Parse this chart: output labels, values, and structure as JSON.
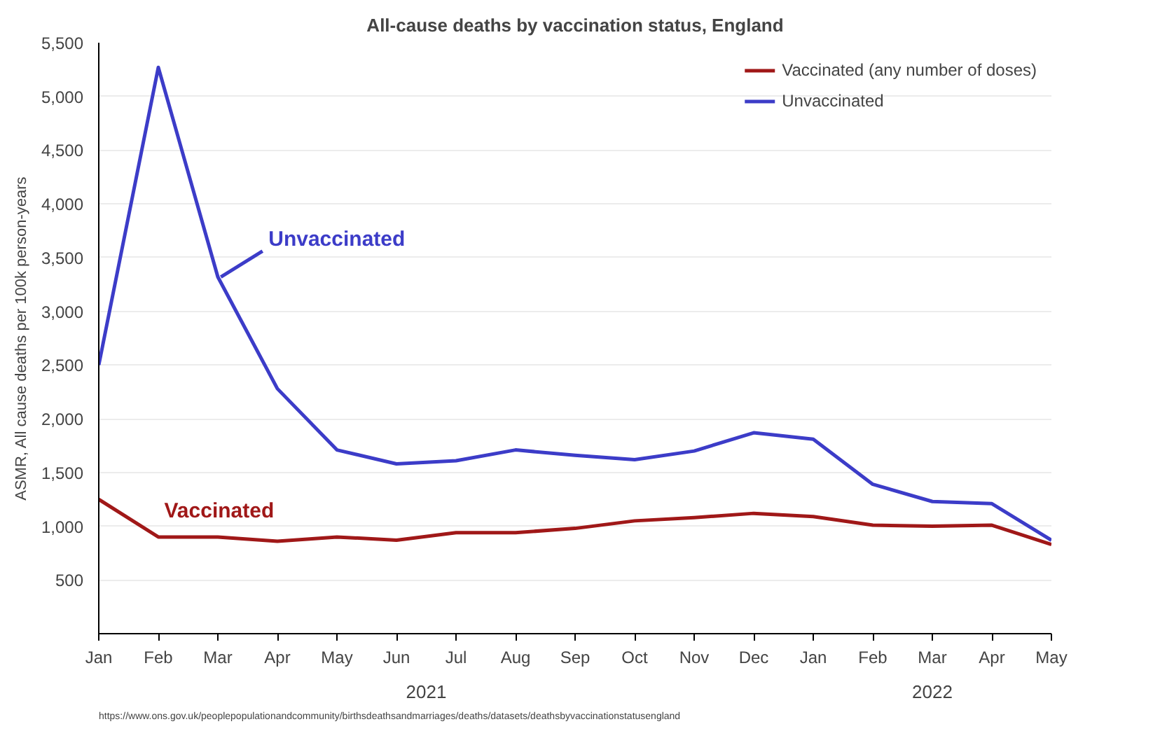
{
  "chart_data": {
    "type": "line",
    "title": "All-cause deaths by vaccination status, England",
    "ylabel": "ASMR, All cause deaths per 100k person-years",
    "categories": [
      "Jan",
      "Feb",
      "Mar",
      "Apr",
      "May",
      "Jun",
      "Jul",
      "Aug",
      "Sep",
      "Oct",
      "Nov",
      "Dec",
      "Jan",
      "Feb",
      "Mar",
      "Apr",
      "May"
    ],
    "series": [
      {
        "name": "Vaccinated (any number of doses)",
        "color": "#a01818",
        "values": [
          1250,
          900,
          900,
          860,
          900,
          870,
          940,
          940,
          980,
          1050,
          1080,
          1120,
          1090,
          1010,
          1000,
          1010,
          830
        ]
      },
      {
        "name": "Unvaccinated",
        "color": "#3c3cc8",
        "values": [
          2500,
          5270,
          3320,
          2280,
          1710,
          1580,
          1610,
          1710,
          1660,
          1620,
          1700,
          1870,
          1810,
          1390,
          1230,
          1210,
          870
        ]
      }
    ],
    "ylim": [
      0,
      5500
    ],
    "yticks": [
      500,
      {
        "value": 1000,
        "label": "1,000"
      },
      {
        "value": 1500,
        "label": "1,500"
      },
      {
        "value": 2000,
        "label": "2,000"
      },
      {
        "value": 2500,
        "label": "2,500"
      },
      {
        "value": 3000,
        "label": "3,000"
      },
      {
        "value": 3500,
        "label": "3,500"
      },
      {
        "value": 4000,
        "label": "4,000"
      },
      {
        "value": 4500,
        "label": "4,500"
      },
      {
        "value": 5000,
        "label": "5,000"
      },
      {
        "value": 5500,
        "label": "5,500"
      }
    ],
    "grid": "y",
    "legend": "top right",
    "marker": "none",
    "line_style": "solid",
    "annotations": [
      {
        "text": "Unvaccinated",
        "x": "Mar",
        "y": 3320
      },
      "Vaccinated",
      "2021",
      "2022",
      "https://www.ons.gov.uk/peoplepopulationandcommunity/birthsdeathsandmarriages/deaths/datasets/deathsbyvaccinationstatusengland"
    ]
  }
}
